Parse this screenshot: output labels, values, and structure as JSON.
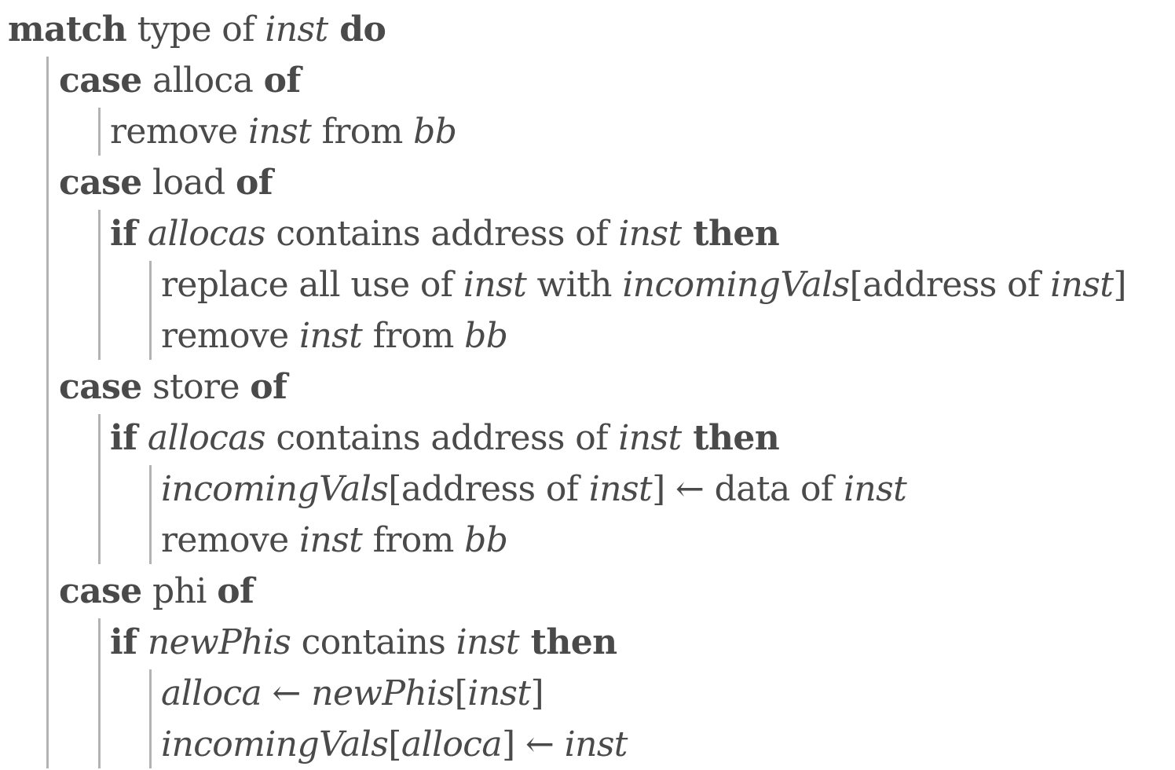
{
  "algorithm": {
    "lines": [
      [
        {
          "t": "match",
          "s": "kw"
        },
        {
          "t": " type of "
        },
        {
          "t": "inst",
          "s": "it"
        },
        {
          "t": " do",
          "s": "kw"
        }
      ],
      [
        {
          "t": "case",
          "s": "kw"
        },
        {
          "t": " alloca "
        },
        {
          "t": "of",
          "s": "kw"
        }
      ],
      [
        {
          "t": "remove "
        },
        {
          "t": "inst",
          "s": "it"
        },
        {
          "t": " from "
        },
        {
          "t": "bb",
          "s": "it"
        }
      ],
      [
        {
          "t": "case",
          "s": "kw"
        },
        {
          "t": " load "
        },
        {
          "t": "of",
          "s": "kw"
        }
      ],
      [
        {
          "t": "if",
          "s": "kw"
        },
        {
          "t": " "
        },
        {
          "t": "allocas",
          "s": "it"
        },
        {
          "t": " contains address of "
        },
        {
          "t": "inst",
          "s": "it"
        },
        {
          "t": " then",
          "s": "kw"
        }
      ],
      [
        {
          "t": "replace all use of "
        },
        {
          "t": "inst",
          "s": "it"
        },
        {
          "t": " with "
        },
        {
          "t": "incomingVals",
          "s": "it"
        },
        {
          "t": "[address of "
        },
        {
          "t": "inst",
          "s": "it"
        },
        {
          "t": "]"
        }
      ],
      [
        {
          "t": "remove "
        },
        {
          "t": "inst",
          "s": "it"
        },
        {
          "t": " from "
        },
        {
          "t": "bb",
          "s": "it"
        }
      ],
      [
        {
          "t": "case",
          "s": "kw"
        },
        {
          "t": " store "
        },
        {
          "t": "of",
          "s": "kw"
        }
      ],
      [
        {
          "t": "if",
          "s": "kw"
        },
        {
          "t": " "
        },
        {
          "t": "allocas",
          "s": "it"
        },
        {
          "t": " contains address of "
        },
        {
          "t": "inst",
          "s": "it"
        },
        {
          "t": " then",
          "s": "kw"
        }
      ],
      [
        {
          "t": "incomingVals",
          "s": "it"
        },
        {
          "t": "[address of "
        },
        {
          "t": "inst",
          "s": "it"
        },
        {
          "t": "] ← data of "
        },
        {
          "t": "inst",
          "s": "it"
        }
      ],
      [
        {
          "t": "remove "
        },
        {
          "t": "inst",
          "s": "it"
        },
        {
          "t": " from "
        },
        {
          "t": "bb",
          "s": "it"
        }
      ],
      [
        {
          "t": "case",
          "s": "kw"
        },
        {
          "t": " phi "
        },
        {
          "t": "of",
          "s": "kw"
        }
      ],
      [
        {
          "t": "if",
          "s": "kw"
        },
        {
          "t": " "
        },
        {
          "t": "newPhis",
          "s": "it"
        },
        {
          "t": " contains "
        },
        {
          "t": "inst",
          "s": "it"
        },
        {
          "t": " then",
          "s": "kw"
        }
      ],
      [
        {
          "t": "alloca",
          "s": "it"
        },
        {
          "t": " ← "
        },
        {
          "t": "newPhis",
          "s": "it"
        },
        {
          "t": "["
        },
        {
          "t": "inst",
          "s": "it"
        },
        {
          "t": "]"
        }
      ],
      [
        {
          "t": "incomingVals",
          "s": "it"
        },
        {
          "t": "["
        },
        {
          "t": "alloca",
          "s": "it"
        },
        {
          "t": "] ← "
        },
        {
          "t": "inst",
          "s": "it"
        }
      ]
    ]
  }
}
